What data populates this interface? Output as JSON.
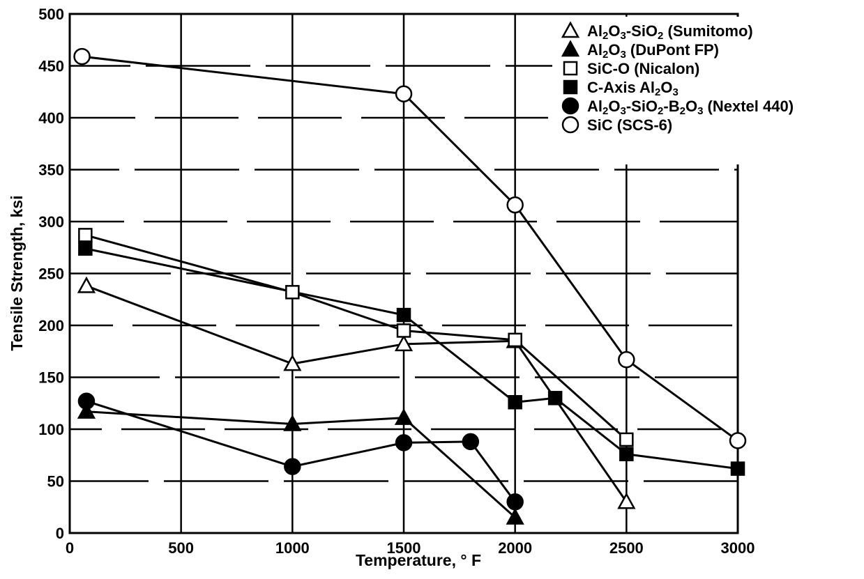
{
  "chart_data": {
    "type": "line",
    "title": "",
    "xlabel": "Temperature, ° F",
    "ylabel": "Tensile Strength, ksi",
    "xlim": [
      0,
      3000
    ],
    "ylim": [
      0,
      500
    ],
    "xticks": [
      0,
      500,
      1000,
      1500,
      2000,
      2500,
      3000
    ],
    "yticks": [
      0,
      50,
      100,
      150,
      200,
      250,
      300,
      350,
      400,
      450,
      500
    ],
    "grid": "dashed-horizontal",
    "legend_position": "top-right",
    "series": [
      {
        "key": "s1",
        "name_parts": [
          [
            "Al",
            ""
          ],
          [
            "2",
            "sub"
          ],
          [
            "O",
            ""
          ],
          [
            "3",
            "sub"
          ],
          [
            "-SiO",
            ""
          ],
          [
            "2",
            "sub"
          ],
          [
            " (Sumitomo)",
            ""
          ]
        ],
        "marker": "triangle-open",
        "points": [
          [
            75,
            238
          ],
          [
            1000,
            163
          ],
          [
            1500,
            182
          ],
          [
            2000,
            185
          ],
          [
            2500,
            30
          ]
        ]
      },
      {
        "key": "s2",
        "name_parts": [
          [
            "Al",
            ""
          ],
          [
            "2",
            "sub"
          ],
          [
            "O",
            ""
          ],
          [
            "3",
            "sub"
          ],
          [
            " (DuPont FP)",
            ""
          ]
        ],
        "marker": "triangle-filled",
        "points": [
          [
            75,
            117
          ],
          [
            1000,
            105
          ],
          [
            1500,
            111
          ],
          [
            2000,
            15
          ]
        ]
      },
      {
        "key": "s3",
        "name_parts": [
          [
            "SiC-O (Nicalon)",
            ""
          ]
        ],
        "marker": "square-open",
        "points": [
          [
            70,
            287
          ],
          [
            1000,
            232
          ],
          [
            1500,
            195
          ],
          [
            2000,
            186
          ],
          [
            2500,
            90
          ]
        ]
      },
      {
        "key": "s4",
        "name_parts": [
          [
            "C-Axis  Al",
            ""
          ],
          [
            "2",
            "sub"
          ],
          [
            "O",
            ""
          ],
          [
            "3",
            "sub"
          ]
        ],
        "marker": "square-filled",
        "points": [
          [
            70,
            274
          ],
          [
            1500,
            210
          ],
          [
            2000,
            126
          ],
          [
            2180,
            130
          ],
          [
            2500,
            76
          ],
          [
            3000,
            62
          ]
        ]
      },
      {
        "key": "s5",
        "name_parts": [
          [
            "Al",
            ""
          ],
          [
            "2",
            "sub"
          ],
          [
            "O",
            ""
          ],
          [
            "3",
            "sub"
          ],
          [
            "-SiO",
            ""
          ],
          [
            "2",
            "sub"
          ],
          [
            "-B",
            ""
          ],
          [
            "2",
            "sub"
          ],
          [
            "O",
            ""
          ],
          [
            "3",
            "sub"
          ],
          [
            " (Nextel 440)",
            ""
          ]
        ],
        "marker": "circle-filled",
        "points": [
          [
            75,
            127
          ],
          [
            1000,
            64
          ],
          [
            1500,
            87
          ],
          [
            1800,
            88
          ],
          [
            2000,
            30
          ]
        ]
      },
      {
        "key": "s6",
        "name_parts": [
          [
            "SiC (SCS-6)",
            ""
          ]
        ],
        "marker": "circle-open",
        "points": [
          [
            55,
            459
          ],
          [
            1500,
            423
          ],
          [
            2000,
            316
          ],
          [
            2500,
            167
          ],
          [
            3000,
            89
          ]
        ]
      }
    ]
  }
}
